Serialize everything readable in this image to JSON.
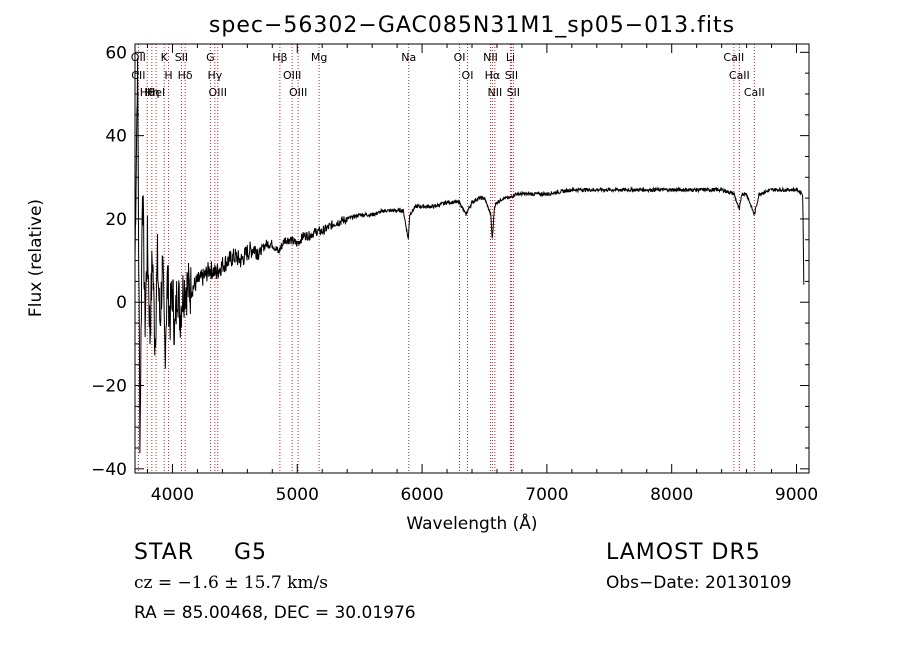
{
  "chart_data": {
    "type": "line",
    "title": "spec−56302−GAC085N31M1_sp05−013.fits",
    "xlabel": "Wavelength (Å)",
    "ylabel": "Flux (relative)",
    "xlim": [
      3700,
      9100
    ],
    "ylim": [
      -41,
      62
    ],
    "xticks": [
      4000,
      5000,
      6000,
      7000,
      8000,
      9000
    ],
    "yticks": [
      -40,
      -20,
      0,
      20,
      40,
      60
    ],
    "grid": false,
    "line_color": "#000000",
    "marker_color": "#cc2222",
    "series": [
      {
        "x": [
          3700,
          3720,
          3740,
          3760,
          3780,
          3800,
          3820,
          3840,
          3860,
          3880,
          3900,
          3920,
          3940,
          3960,
          3980,
          4000,
          4020,
          4040,
          4060,
          4080,
          4100,
          4150,
          4200,
          4250,
          4300,
          4350,
          4400,
          4450,
          4500,
          4550,
          4600,
          4650,
          4700,
          4750,
          4800,
          4850,
          4900,
          4950,
          5000,
          5050,
          5100,
          5150,
          5200,
          5250,
          5300,
          5400,
          5500,
          5600,
          5700,
          5800,
          5850,
          5890,
          5900,
          5950,
          6000,
          6100,
          6200,
          6300,
          6350,
          6400,
          6450,
          6500,
          6550,
          6563,
          6580,
          6600,
          6650,
          6700,
          6750,
          6800,
          6900,
          7000,
          7200,
          7400,
          7600,
          7800,
          8000,
          8200,
          8400,
          8500,
          8542,
          8560,
          8600,
          8662,
          8700,
          8800,
          8900,
          9000,
          9050,
          9060
        ],
        "y": [
          10,
          58,
          -35,
          30,
          -5,
          15,
          -8,
          12,
          -10,
          10,
          -5,
          8,
          -12,
          6,
          -4,
          3,
          -8,
          5,
          -3,
          2,
          4,
          3,
          5,
          6,
          8,
          7,
          9,
          10,
          11,
          10,
          12,
          13,
          12,
          14,
          14,
          12,
          15,
          15,
          14,
          16,
          16,
          17,
          17,
          18,
          19,
          20,
          21,
          21,
          22,
          22,
          22,
          15,
          21,
          23,
          23,
          23,
          24,
          24,
          21,
          24,
          25,
          25,
          21,
          15,
          23,
          24,
          25,
          25,
          26,
          26,
          26,
          26,
          27,
          27,
          27,
          27,
          27,
          27,
          27,
          26,
          22,
          26,
          26,
          21,
          26,
          27,
          27,
          27,
          26,
          -1
        ]
      }
    ],
    "lines": [
      {
        "x": 3727,
        "labels": [
          "OII",
          "CII"
        ]
      },
      {
        "x": 3798,
        "labels": [
          "Hθ"
        ]
      },
      {
        "x": 3835,
        "labels": [
          "Hη"
        ]
      },
      {
        "x": 3869,
        "labels": [
          "HeI"
        ]
      },
      {
        "x": 3934,
        "labels": [
          "K"
        ]
      },
      {
        "x": 3969,
        "labels": [
          "H"
        ]
      },
      {
        "x": 4072,
        "labels": [
          "SII"
        ]
      },
      {
        "x": 4102,
        "labels": [
          "Hδ"
        ]
      },
      {
        "x": 4304,
        "labels": [
          "G"
        ]
      },
      {
        "x": 4340,
        "labels": [
          "Hγ"
        ]
      },
      {
        "x": 4363,
        "labels": [
          "OIII"
        ]
      },
      {
        "x": 4861,
        "labels": [
          "Hβ"
        ]
      },
      {
        "x": 4959,
        "labels": [
          "OIII"
        ]
      },
      {
        "x": 5007,
        "labels": [
          "OIII"
        ]
      },
      {
        "x": 5175,
        "labels": [
          "Mg"
        ]
      },
      {
        "x": 5893,
        "labels": [
          "Na"
        ]
      },
      {
        "x": 6300,
        "labels": [
          "OI"
        ]
      },
      {
        "x": 6364,
        "labels": [
          "OI"
        ]
      },
      {
        "x": 6548,
        "labels": [
          "NII"
        ]
      },
      {
        "x": 6563,
        "labels": [
          "Hα"
        ]
      },
      {
        "x": 6583,
        "labels": [
          "NII"
        ]
      },
      {
        "x": 6708,
        "labels": [
          "Li"
        ]
      },
      {
        "x": 6716,
        "labels": [
          "SII"
        ]
      },
      {
        "x": 6731,
        "labels": [
          "SII"
        ]
      },
      {
        "x": 8498,
        "labels": [
          "CaII"
        ]
      },
      {
        "x": 8542,
        "labels": [
          "CaII"
        ]
      },
      {
        "x": 8662,
        "labels": [
          "CaII"
        ]
      }
    ]
  },
  "info": {
    "object_class": "STAR",
    "subclass": "G5",
    "redshift": "cz = −1.6 ± 15.7 km/s",
    "coords": "RA =  85.00468, DEC =  30.01976",
    "survey": "LAMOST DR5",
    "obs_date": "Obs−Date: 20130109"
  }
}
